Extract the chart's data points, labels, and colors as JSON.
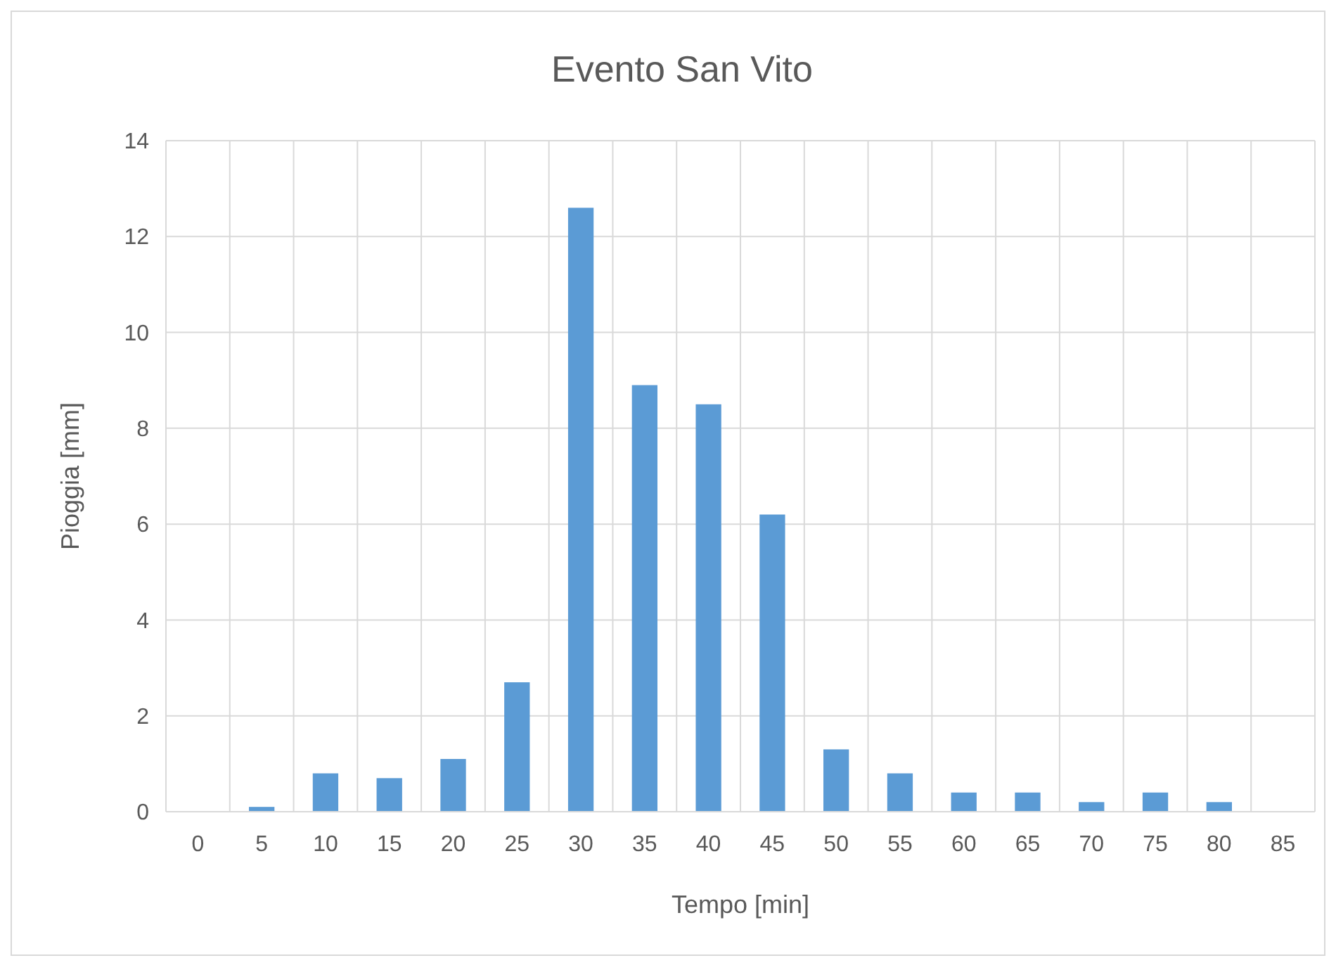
{
  "chart_data": {
    "type": "bar",
    "title": "Evento San Vito",
    "xlabel": "Tempo [min]",
    "ylabel": "Pioggia [mm]",
    "categories": [
      "0",
      "5",
      "10",
      "15",
      "20",
      "25",
      "30",
      "35",
      "40",
      "45",
      "50",
      "55",
      "60",
      "65",
      "70",
      "75",
      "80",
      "85"
    ],
    "values": [
      0,
      0.1,
      0.8,
      0.7,
      1.1,
      2.7,
      12.6,
      8.9,
      8.5,
      6.2,
      1.3,
      0.8,
      0.4,
      0.4,
      0.2,
      0.4,
      0.2,
      0
    ],
    "color": "#5b9bd5",
    "ylim": [
      0,
      14
    ],
    "yticks": [
      0,
      2,
      4,
      6,
      8,
      10,
      12,
      14
    ],
    "grid": true
  }
}
